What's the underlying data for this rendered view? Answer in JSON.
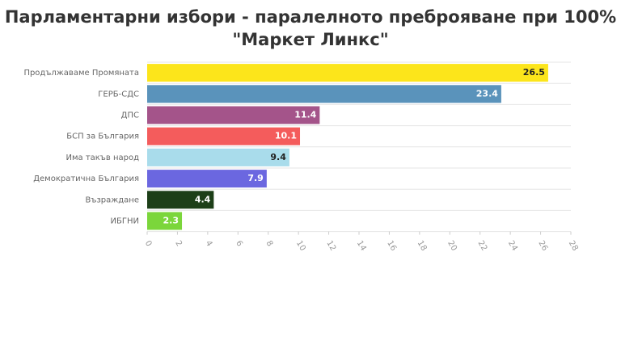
{
  "chart_data": {
    "type": "bar",
    "orientation": "horizontal",
    "title": [
      "Парламентарни избори - паралелното преброяване при 100%",
      "\"Маркет Линкс\""
    ],
    "categories": [
      "Продължаваме Промяната",
      "ГЕРБ-СДС",
      "ДПС",
      "БСП за България",
      "Има такъв народ",
      "Демократична България",
      "Възраждане",
      "ИБГНИ"
    ],
    "values": [
      26.5,
      23.4,
      11.4,
      10.1,
      9.4,
      7.9,
      4.4,
      2.3
    ],
    "colors": [
      "#fce51b",
      "#5a93bb",
      "#a4548a",
      "#f45c5c",
      "#a9dceb",
      "#6b67e0",
      "#1d3f18",
      "#7bd63b"
    ],
    "xlim": [
      0,
      28
    ],
    "xticks": [
      0,
      2,
      4,
      6,
      8,
      10,
      12,
      14,
      16,
      18,
      20,
      22,
      24,
      26,
      28
    ],
    "grid": true
  }
}
